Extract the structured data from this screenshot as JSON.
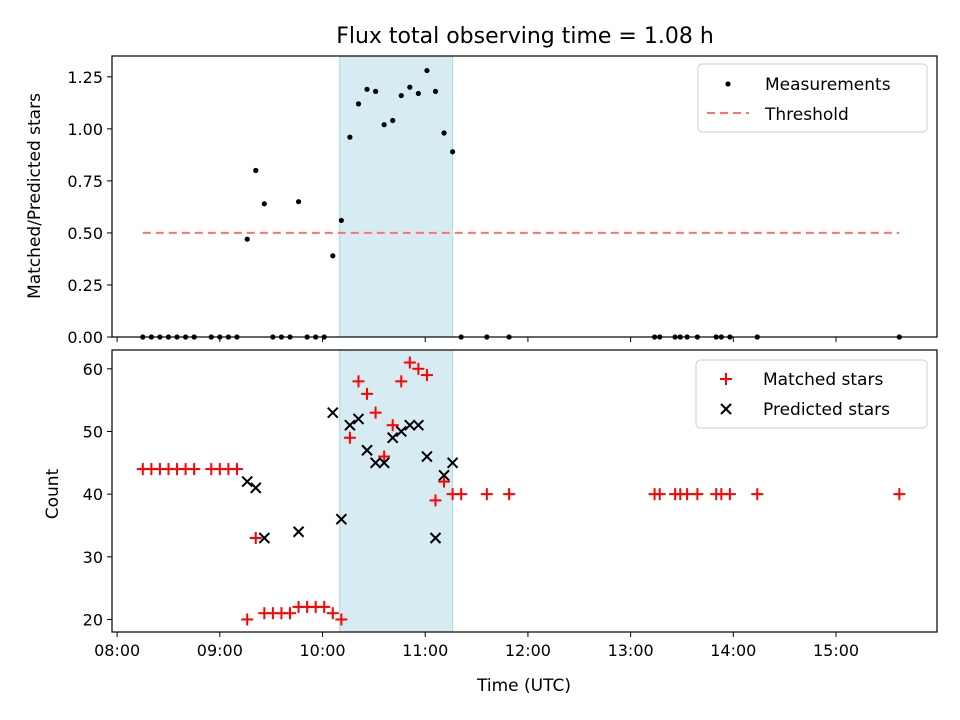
{
  "figure": {
    "title": "Flux total observing time = 1.08 h"
  },
  "chart_data": [
    {
      "type": "scatter",
      "ylabel": "Matched/Predicted stars",
      "ylim": [
        0.0,
        1.35
      ],
      "y_ticks": [
        0.0,
        0.25,
        0.5,
        0.75,
        1.0,
        1.25
      ],
      "y_tick_labels": [
        "0.00",
        "0.25",
        "0.50",
        "0.75",
        "1.00",
        "1.25"
      ],
      "xlim": [
        "07:57",
        "15:59"
      ],
      "x_ticks": [
        "08:00",
        "09:00",
        "10:00",
        "11:00",
        "12:00",
        "13:00",
        "14:00",
        "15:00"
      ],
      "highlight_span": {
        "x": [
          "10:10",
          "11:16"
        ],
        "color": "#add8e6"
      },
      "legend": {
        "placement": "upper right",
        "entries": [
          "Measurements",
          "Threshold"
        ]
      },
      "series": [
        {
          "name": "Measurements",
          "marker": "dot",
          "color": "#000000",
          "points": [
            [
              "08:15",
              0.0
            ],
            [
              "08:20",
              0.0
            ],
            [
              "08:25",
              0.0
            ],
            [
              "08:30",
              0.0
            ],
            [
              "08:35",
              0.0
            ],
            [
              "08:40",
              0.0
            ],
            [
              "08:45",
              0.0
            ],
            [
              "08:55",
              0.0
            ],
            [
              "09:00",
              0.0
            ],
            [
              "09:05",
              0.0
            ],
            [
              "09:10",
              0.0
            ],
            [
              "09:16",
              0.47
            ],
            [
              "09:21",
              0.8
            ],
            [
              "09:26",
              0.64
            ],
            [
              "09:31",
              0.0
            ],
            [
              "09:36",
              0.0
            ],
            [
              "09:41",
              0.0
            ],
            [
              "09:46",
              0.65
            ],
            [
              "09:51",
              0.0
            ],
            [
              "09:56",
              0.0
            ],
            [
              "10:01",
              0.0
            ],
            [
              "10:06",
              0.39
            ],
            [
              "10:11",
              0.56
            ],
            [
              "10:16",
              0.96
            ],
            [
              "10:21",
              1.12
            ],
            [
              "10:26",
              1.19
            ],
            [
              "10:31",
              1.18
            ],
            [
              "10:36",
              1.02
            ],
            [
              "10:41",
              1.04
            ],
            [
              "10:46",
              1.16
            ],
            [
              "10:51",
              1.2
            ],
            [
              "10:56",
              1.17
            ],
            [
              "11:01",
              1.28
            ],
            [
              "11:06",
              1.18
            ],
            [
              "11:11",
              0.98
            ],
            [
              "11:16",
              0.89
            ],
            [
              "11:21",
              0.0
            ],
            [
              "11:36",
              0.0
            ],
            [
              "11:49",
              0.0
            ],
            [
              "13:14",
              0.0
            ],
            [
              "13:17",
              0.0
            ],
            [
              "13:26",
              0.0
            ],
            [
              "13:29",
              0.0
            ],
            [
              "13:33",
              0.0
            ],
            [
              "13:39",
              0.0
            ],
            [
              "13:50",
              0.0
            ],
            [
              "13:53",
              0.0
            ],
            [
              "13:58",
              0.0
            ],
            [
              "14:14",
              0.0
            ],
            [
              "15:37",
              0.0
            ]
          ]
        },
        {
          "name": "Threshold",
          "marker": "dashed-line",
          "color": "#ff7070",
          "points": [
            [
              "08:15",
              0.5
            ],
            [
              "15:37",
              0.5
            ]
          ]
        }
      ]
    },
    {
      "type": "scatter",
      "xlabel": "Time (UTC)",
      "ylabel": "Count",
      "ylim": [
        18,
        63
      ],
      "y_ticks": [
        20,
        30,
        40,
        50,
        60
      ],
      "y_tick_labels": [
        "20",
        "30",
        "40",
        "50",
        "60"
      ],
      "xlim": [
        "07:57",
        "15:59"
      ],
      "x_ticks": [
        "08:00",
        "09:00",
        "10:00",
        "11:00",
        "12:00",
        "13:00",
        "14:00",
        "15:00"
      ],
      "x_tick_labels": [
        "08:00",
        "09:00",
        "10:00",
        "11:00",
        "12:00",
        "13:00",
        "14:00",
        "15:00"
      ],
      "highlight_span": {
        "x": [
          "10:10",
          "11:16"
        ],
        "color": "#add8e6"
      },
      "legend": {
        "placement": "upper right",
        "entries": [
          "Matched stars",
          "Predicted stars"
        ]
      },
      "series": [
        {
          "name": "Matched stars",
          "marker": "plus",
          "color": "#ff0000",
          "points": [
            [
              "08:15",
              44
            ],
            [
              "08:20",
              44
            ],
            [
              "08:25",
              44
            ],
            [
              "08:30",
              44
            ],
            [
              "08:35",
              44
            ],
            [
              "08:40",
              44
            ],
            [
              "08:45",
              44
            ],
            [
              "08:55",
              44
            ],
            [
              "09:00",
              44
            ],
            [
              "09:05",
              44
            ],
            [
              "09:10",
              44
            ],
            [
              "09:16",
              20
            ],
            [
              "09:21",
              33
            ],
            [
              "09:26",
              21
            ],
            [
              "09:31",
              21
            ],
            [
              "09:36",
              21
            ],
            [
              "09:41",
              21
            ],
            [
              "09:46",
              22
            ],
            [
              "09:51",
              22
            ],
            [
              "09:56",
              22
            ],
            [
              "10:01",
              22
            ],
            [
              "10:06",
              21
            ],
            [
              "10:11",
              20
            ],
            [
              "10:16",
              49
            ],
            [
              "10:21",
              58
            ],
            [
              "10:26",
              56
            ],
            [
              "10:31",
              53
            ],
            [
              "10:36",
              46
            ],
            [
              "10:41",
              51
            ],
            [
              "10:46",
              58
            ],
            [
              "10:51",
              61
            ],
            [
              "10:56",
              60
            ],
            [
              "11:01",
              59
            ],
            [
              "11:06",
              39
            ],
            [
              "11:11",
              42
            ],
            [
              "11:16",
              40
            ],
            [
              "11:21",
              40
            ],
            [
              "11:36",
              40
            ],
            [
              "11:49",
              40
            ],
            [
              "13:14",
              40
            ],
            [
              "13:17",
              40
            ],
            [
              "13:26",
              40
            ],
            [
              "13:29",
              40
            ],
            [
              "13:33",
              40
            ],
            [
              "13:39",
              40
            ],
            [
              "13:50",
              40
            ],
            [
              "13:53",
              40
            ],
            [
              "13:58",
              40
            ],
            [
              "14:14",
              40
            ],
            [
              "15:37",
              40
            ]
          ]
        },
        {
          "name": "Predicted stars",
          "marker": "x",
          "color": "#000000",
          "points": [
            [
              "09:16",
              42
            ],
            [
              "09:21",
              41
            ],
            [
              "09:26",
              33
            ],
            [
              "09:46",
              34
            ],
            [
              "10:06",
              53
            ],
            [
              "10:11",
              36
            ],
            [
              "10:16",
              51
            ],
            [
              "10:21",
              52
            ],
            [
              "10:26",
              47
            ],
            [
              "10:31",
              45
            ],
            [
              "10:36",
              45
            ],
            [
              "10:41",
              49
            ],
            [
              "10:46",
              50
            ],
            [
              "10:51",
              51
            ],
            [
              "10:56",
              51
            ],
            [
              "11:01",
              46
            ],
            [
              "11:06",
              33
            ],
            [
              "11:11",
              43
            ],
            [
              "11:16",
              45
            ]
          ]
        }
      ]
    }
  ]
}
